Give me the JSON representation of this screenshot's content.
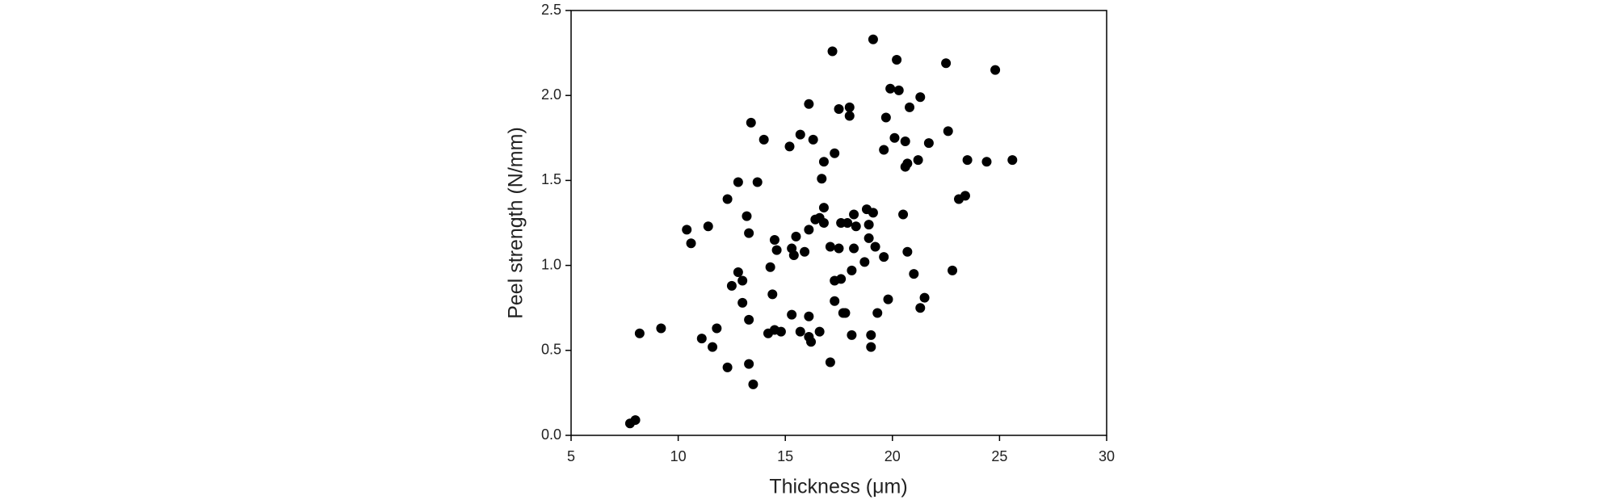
{
  "chart_data": {
    "type": "scatter",
    "xlabel": "Thickness (μm)",
    "ylabel": "Peel strength (N/mm)",
    "color": "#000000",
    "xlim": [
      5,
      30
    ],
    "xticks": [
      5,
      10,
      15,
      20,
      25,
      30
    ],
    "ylim": [
      0,
      2.5
    ],
    "yticks": [
      {
        "value": 0,
        "label": "0.0"
      },
      {
        "value": 0.5,
        "label": "0.5"
      },
      {
        "value": 1,
        "label": "1.0"
      },
      {
        "value": 1.5,
        "label": "1.5"
      },
      {
        "value": 2,
        "label": "2.0"
      },
      {
        "value": 2.5,
        "label": "2.5"
      }
    ],
    "x": [
      7.75,
      8.0,
      8.2,
      9.2,
      10.4,
      10.6,
      11.4,
      11.1,
      11.6,
      11.8,
      12.3,
      12.8,
      12.3,
      12.5,
      12.8,
      13.0,
      13.0,
      13.2,
      13.3,
      13.3,
      13.4,
      13.3,
      13.5,
      13.7,
      14.0,
      14.3,
      14.4,
      14.5,
      14.6,
      14.2,
      14.5,
      14.8,
      15.2,
      15.3,
      15.4,
      15.5,
      15.3,
      15.7,
      15.7,
      15.9,
      16.1,
      16.1,
      16.1,
      16.1,
      16.2,
      16.3,
      16.4,
      16.6,
      16.6,
      16.7,
      16.8,
      16.8,
      16.8,
      17.2,
      17.1,
      17.1,
      17.3,
      17.3,
      17.3,
      17.5,
      17.5,
      17.6,
      17.6,
      17.7,
      17.9,
      17.8,
      18.0,
      18.0,
      18.1,
      18.1,
      18.2,
      18.3,
      18.2,
      18.7,
      18.8,
      18.9,
      18.9,
      19.0,
      19.0,
      19.1,
      19.1,
      19.2,
      19.3,
      19.6,
      19.6,
      19.7,
      19.8,
      19.9,
      20.1,
      20.2,
      20.3,
      20.5,
      20.6,
      20.7,
      20.6,
      20.8,
      20.7,
      21.0,
      21.2,
      21.3,
      21.3,
      21.5,
      21.7,
      22.5,
      22.6,
      22.8,
      23.1,
      23.4,
      23.5,
      24.4,
      24.8,
      25.6
    ],
    "values": [
      0.07,
      0.09,
      0.6,
      0.63,
      1.21,
      1.13,
      1.23,
      0.57,
      0.52,
      0.63,
      1.39,
      1.49,
      0.4,
      0.88,
      0.96,
      0.91,
      0.78,
      1.29,
      1.19,
      0.68,
      1.84,
      0.42,
      0.3,
      1.49,
      1.74,
      0.99,
      0.83,
      1.15,
      1.09,
      0.6,
      0.62,
      0.61,
      1.7,
      1.1,
      1.06,
      1.17,
      0.71,
      1.77,
      0.61,
      1.08,
      1.95,
      1.21,
      0.7,
      0.58,
      0.55,
      1.74,
      1.27,
      1.28,
      0.61,
      1.51,
      1.25,
      1.61,
      1.34,
      2.26,
      1.11,
      0.43,
      1.66,
      0.91,
      0.79,
      1.1,
      1.92,
      1.25,
      0.92,
      0.72,
      1.25,
      0.72,
      1.93,
      1.88,
      0.97,
      0.59,
      1.3,
      1.23,
      1.1,
      1.02,
      1.33,
      1.16,
      1.24,
      0.59,
      0.52,
      2.33,
      1.31,
      1.11,
      0.72,
      1.05,
      1.68,
      1.87,
      0.8,
      2.04,
      1.75,
      2.21,
      2.03,
      1.3,
      1.58,
      1.6,
      1.73,
      1.93,
      1.08,
      0.95,
      1.62,
      1.99,
      0.75,
      0.81,
      1.72,
      2.19,
      1.79,
      0.97,
      1.39,
      1.41,
      1.62,
      1.61,
      2.15,
      1.62
    ]
  }
}
